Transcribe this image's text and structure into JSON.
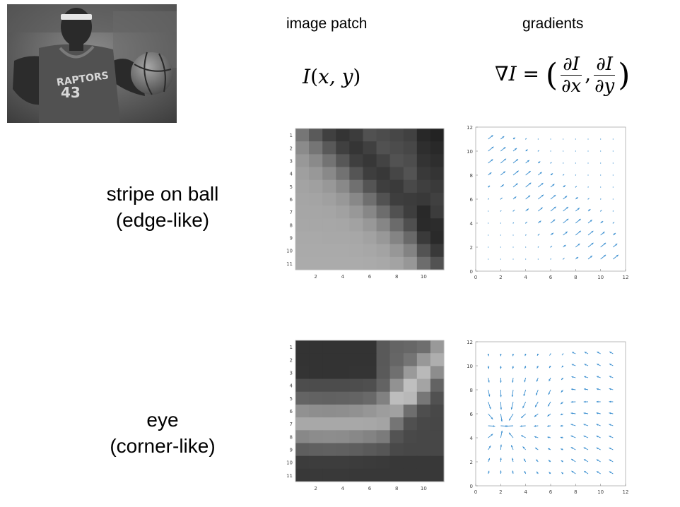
{
  "headers": {
    "image_patch": "image patch",
    "gradients": "gradients"
  },
  "formulas": {
    "patch": {
      "fn": "I",
      "open": "(",
      "args": "x, y",
      "close": ")"
    },
    "gradient": {
      "nabla": "∇",
      "lhs_var": "I",
      "equals": "=",
      "open": "(",
      "close": ")",
      "comma": ",",
      "num1": "∂I",
      "den1": "∂x",
      "num2": "∂I",
      "den2": "∂y"
    }
  },
  "rows": [
    {
      "label_line1": "stripe on ball",
      "label_line2": "(edge-like)"
    },
    {
      "label_line1": "eye",
      "label_line2": "(corner-like)"
    }
  ],
  "chart_data": [
    {
      "type": "heatmap",
      "name": "stripe patch",
      "colormap": "grayscale",
      "xticks": [
        "2",
        "4",
        "6",
        "8",
        "10"
      ],
      "yticks": [
        "1",
        "2",
        "3",
        "4",
        "5",
        "6",
        "7",
        "8",
        "9",
        "10",
        "11"
      ],
      "pattern": "diagonal dark stripe from top-middle to bottom-right; light lower-left"
    },
    {
      "type": "quiver",
      "name": "stripe gradients",
      "color": "#3b8fd0",
      "xlim": [
        0,
        12
      ],
      "ylim": [
        0,
        12
      ],
      "xticks": [
        "0",
        "2",
        "4",
        "6",
        "8",
        "10",
        "12"
      ],
      "yticks": [
        "0",
        "2",
        "4",
        "6",
        "8",
        "10",
        "12"
      ],
      "pattern": "arrows aligned along diagonal band, pointing up-right"
    },
    {
      "type": "heatmap",
      "name": "eye patch",
      "colormap": "grayscale",
      "xticks": [
        "2",
        "4",
        "6",
        "8",
        "10"
      ],
      "yticks": [
        "1",
        "2",
        "3",
        "4",
        "5",
        "6",
        "7",
        "8",
        "9",
        "10",
        "11"
      ],
      "pattern": "dark upper-left region, light curved band across middle, dark bottom"
    },
    {
      "type": "quiver",
      "name": "eye gradients",
      "color": "#3b8fd0",
      "xlim": [
        0,
        12
      ],
      "ylim": [
        0,
        12
      ],
      "xticks": [
        "0",
        "2",
        "4",
        "6",
        "8",
        "10",
        "12"
      ],
      "yticks": [
        "0",
        "2",
        "4",
        "6",
        "8",
        "10",
        "12"
      ],
      "pattern": "arrows in many directions, converging near (2,5) and diverging on right"
    }
  ],
  "photo": {
    "jersey_text": "RAPTORS",
    "jersey_number": "43"
  }
}
